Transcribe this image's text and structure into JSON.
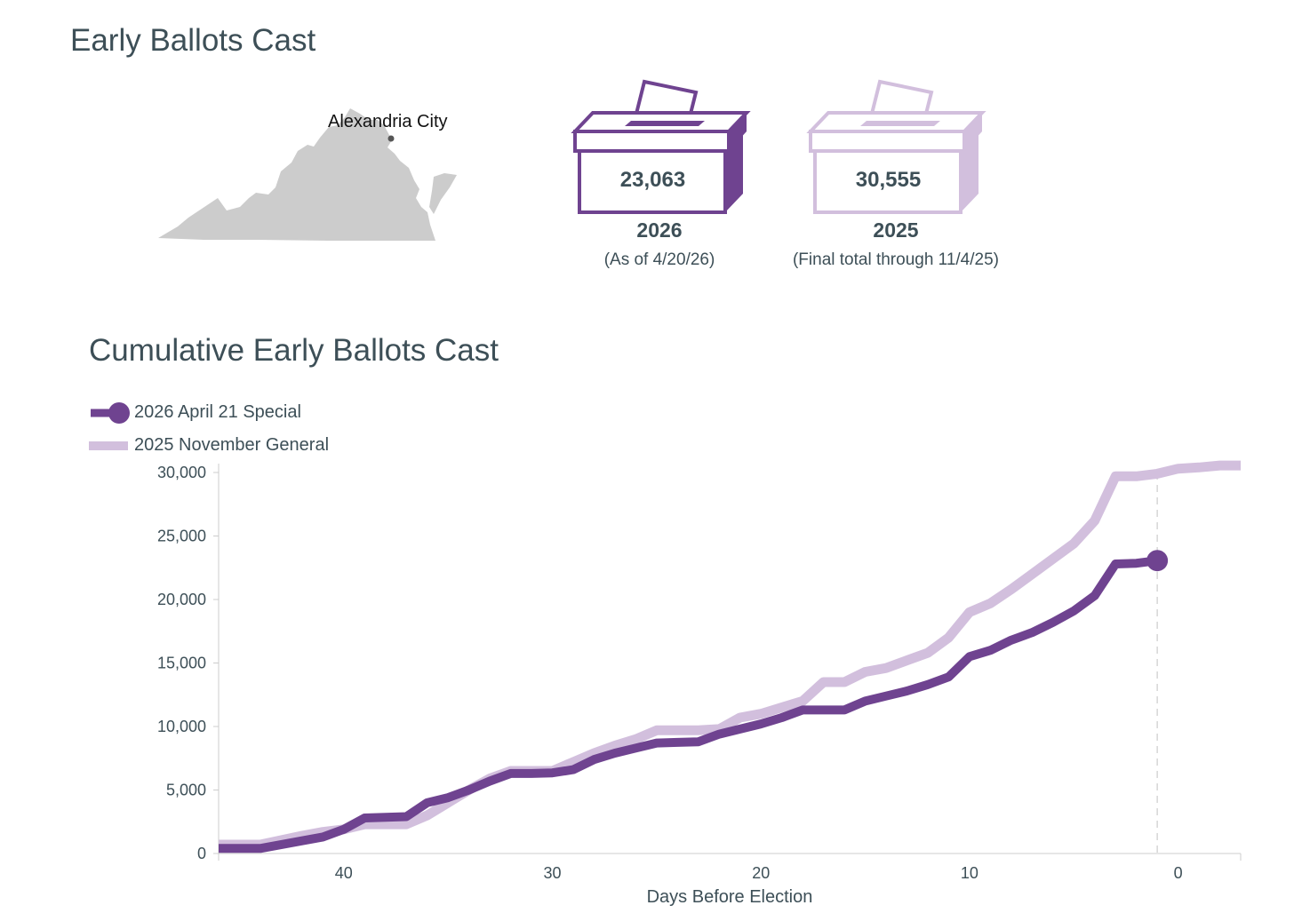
{
  "header": {
    "title": "Early Ballots Cast"
  },
  "map": {
    "locality": "Alexandria City",
    "state_color": "#cccccc",
    "marker_color": "#555555"
  },
  "summary": [
    {
      "count": "23,063",
      "year": "2026",
      "note": "(As of 4/20/26)",
      "color": "#6f4390"
    },
    {
      "count": "30,555",
      "year": "2025",
      "note": "(Final total through 11/4/25)",
      "color": "#d2bfdd"
    }
  ],
  "chart_data": {
    "type": "line",
    "title": "Cumulative Early Ballots Cast",
    "xlabel": "Days Before Election",
    "ylabel": "",
    "xlim": [
      46,
      -3
    ],
    "ylim": [
      0,
      30000
    ],
    "x_ticks": [
      40,
      30,
      20,
      10,
      0
    ],
    "y_ticks": [
      0,
      5000,
      10000,
      15000,
      20000,
      25000,
      30000
    ],
    "y_tick_labels": [
      "0",
      "5,000",
      "10,000",
      "15,000",
      "20,000",
      "25,000",
      "30,000"
    ],
    "legend_position": "top-left",
    "reference_line_x": 1,
    "series": [
      {
        "name": "2026 April 21 Special",
        "color": "#6f4390",
        "end_marker": true,
        "x": [
          46,
          44,
          42,
          41,
          40,
          39,
          38,
          37,
          36,
          35,
          34,
          33,
          32,
          31,
          30,
          29,
          28,
          27,
          26,
          25,
          24,
          23,
          22,
          21,
          20,
          19,
          18,
          17,
          16,
          15,
          14,
          13,
          12,
          11,
          10,
          9,
          8,
          7,
          6,
          5,
          4,
          3,
          2,
          1
        ],
        "values": [
          400,
          400,
          1000,
          1300,
          1900,
          2800,
          2850,
          2900,
          4000,
          4400,
          5000,
          5700,
          6300,
          6300,
          6350,
          6600,
          7400,
          7900,
          8300,
          8700,
          8750,
          8800,
          9400,
          9800,
          10200,
          10700,
          11300,
          11300,
          11300,
          12000,
          12400,
          12800,
          13300,
          13900,
          15500,
          16000,
          16800,
          17400,
          18200,
          19100,
          20300,
          22800,
          22850,
          23063
        ]
      },
      {
        "name": "2025 November General",
        "color": "#d2bfdd",
        "end_marker": false,
        "x": [
          46,
          44,
          42,
          41,
          40,
          39,
          38,
          37,
          36,
          35,
          34,
          33,
          32,
          31,
          30,
          29,
          28,
          27,
          26,
          25,
          24,
          23,
          22,
          21,
          20,
          19,
          18,
          17,
          16,
          15,
          14,
          13,
          12,
          11,
          10,
          9,
          8,
          7,
          6,
          5,
          4,
          3,
          2,
          1,
          0,
          -1,
          -2,
          -3
        ],
        "values": [
          700,
          700,
          1400,
          1700,
          1900,
          2300,
          2300,
          2300,
          3000,
          4000,
          5000,
          5900,
          6500,
          6500,
          6500,
          7200,
          7900,
          8500,
          9000,
          9700,
          9700,
          9700,
          9800,
          10700,
          11000,
          11500,
          12000,
          13500,
          13500,
          14300,
          14600,
          15200,
          15800,
          17000,
          19000,
          19700,
          20800,
          22000,
          23200,
          24400,
          26200,
          29700,
          29700,
          29900,
          30300,
          30400,
          30555,
          30555
        ]
      }
    ]
  }
}
